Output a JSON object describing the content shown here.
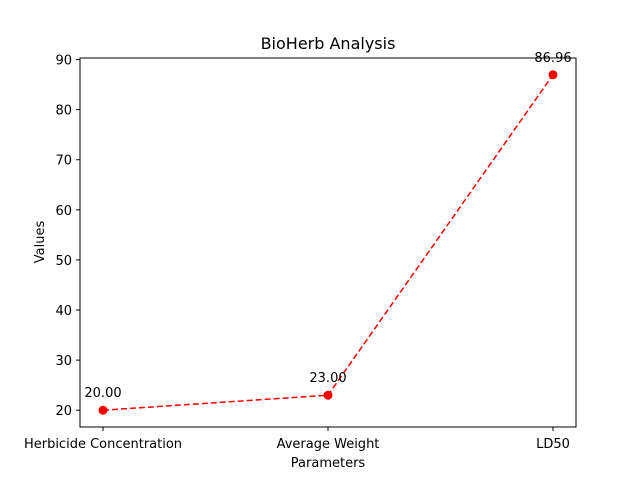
{
  "chart_data": {
    "type": "line",
    "title": "BioHerb Analysis",
    "xlabel": "Parameters",
    "ylabel": "Values",
    "categories": [
      "Herbicide Concentration",
      "Average Weight",
      "LD50"
    ],
    "values": [
      20.0,
      23.0,
      86.96
    ],
    "data_labels": [
      "20.00",
      "23.00",
      "86.96"
    ],
    "ylim": [
      16.65,
      90.31
    ],
    "yticks": [
      20,
      30,
      40,
      50,
      60,
      70,
      80,
      90
    ],
    "grid": false,
    "line_style": "dashed",
    "marker": "circle",
    "series_color": "#ff0000"
  }
}
